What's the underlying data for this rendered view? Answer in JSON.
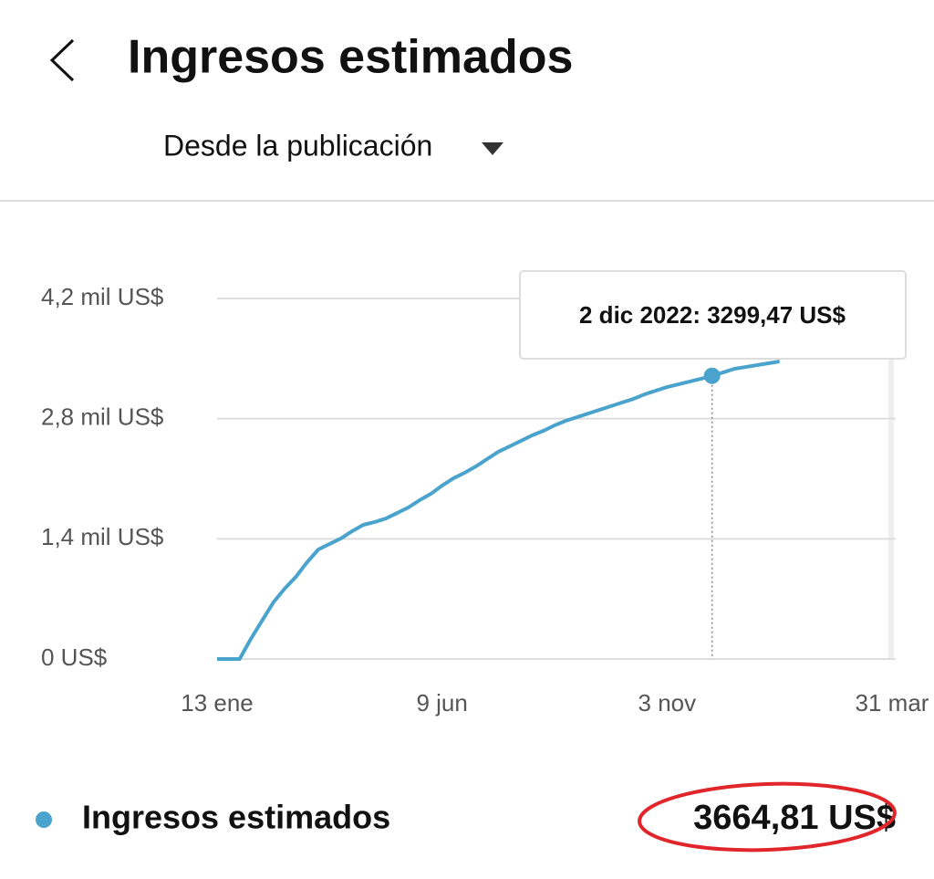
{
  "header": {
    "title": "Ingresos estimados"
  },
  "filter": {
    "label": "Desde la publicación"
  },
  "chart_data": {
    "type": "line",
    "categories": [
      "13 ene",
      null,
      null,
      null,
      null,
      null,
      null,
      null,
      null,
      null,
      null,
      null,
      null,
      null,
      null,
      null,
      null,
      null,
      null,
      null,
      "9 jun",
      null,
      null,
      null,
      null,
      null,
      null,
      null,
      null,
      null,
      null,
      null,
      null,
      null,
      null,
      null,
      null,
      null,
      null,
      null,
      "3 nov",
      null,
      null,
      null,
      null,
      null,
      null,
      null,
      null,
      null,
      null,
      null,
      null,
      null,
      null,
      null,
      null,
      null,
      null,
      null,
      "31 mar"
    ],
    "series": [
      {
        "name": "Ingresos estimados",
        "color": "#4aa3cc",
        "values": [
          0,
          0,
          0,
          234,
          447,
          659,
          819,
          957,
          1127,
          1276,
          1340,
          1404,
          1489,
          1563,
          1595,
          1637,
          1701,
          1765,
          1850,
          1924,
          2020,
          2105,
          2169,
          2243,
          2329,
          2414,
          2477,
          2541,
          2605,
          2658,
          2722,
          2775,
          2818,
          2860,
          2903,
          2945,
          2988,
          3030,
          3083,
          3126,
          3168,
          3200,
          3232,
          3264,
          3299.47,
          3339,
          3381,
          3402,
          3424,
          3445,
          3466,
          null,
          null,
          null,
          null,
          null,
          null,
          null,
          null,
          null,
          null
        ]
      }
    ],
    "ylim": [
      0,
      4200
    ],
    "yticks": [
      {
        "value": 0,
        "label": "0 US$"
      },
      {
        "value": 1400,
        "label": "1,4 mil US$"
      },
      {
        "value": 2800,
        "label": "2,8 mil US$"
      },
      {
        "value": 4200,
        "label": "4,2 mil US$"
      }
    ],
    "grid": true,
    "tooltip": {
      "text": "2 dic 2022: 3299,47 US$",
      "point": 44
    },
    "total": "3664,81 US$"
  }
}
